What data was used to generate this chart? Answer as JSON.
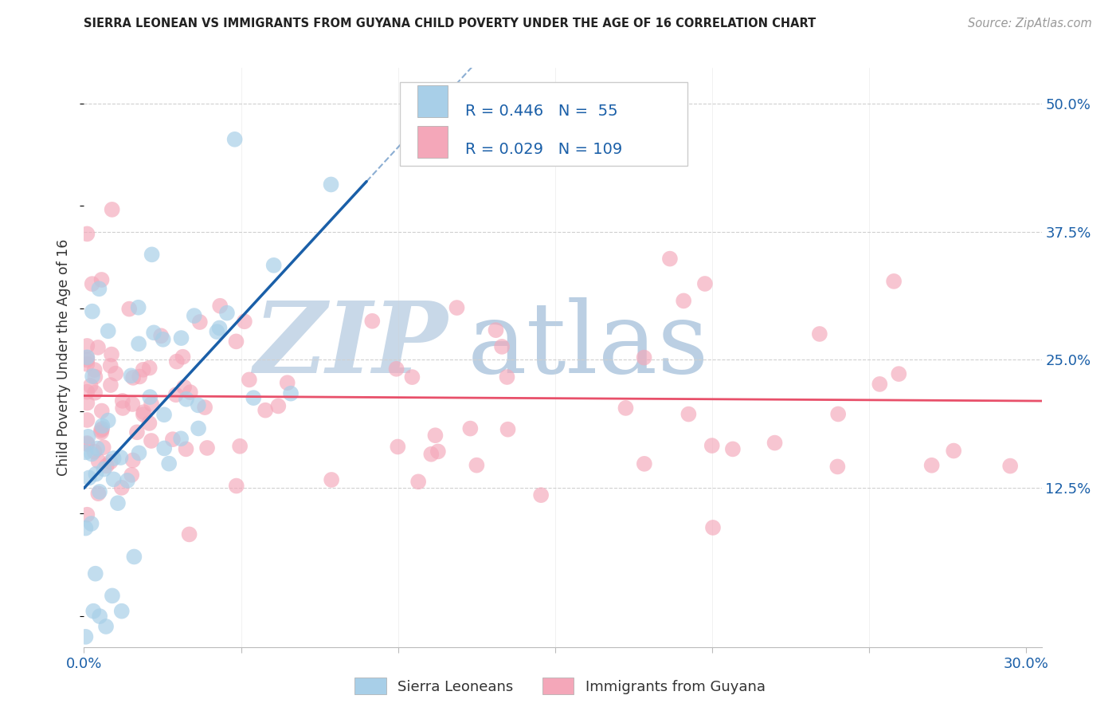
{
  "title": "SIERRA LEONEAN VS IMMIGRANTS FROM GUYANA CHILD POVERTY UNDER THE AGE OF 16 CORRELATION CHART",
  "source": "Source: ZipAtlas.com",
  "ylabel": "Child Poverty Under the Age of 16",
  "xlim": [
    0.0,
    0.305
  ],
  "ylim": [
    -0.03,
    0.535
  ],
  "yticks_right": [
    0.125,
    0.25,
    0.375,
    0.5
  ],
  "ytick_labels_right": [
    "12.5%",
    "25.0%",
    "37.5%",
    "50.0%"
  ],
  "xtick_positions": [
    0.0,
    0.05,
    0.1,
    0.15,
    0.2,
    0.25,
    0.3
  ],
  "xtick_labels": [
    "0.0%",
    "",
    "",
    "",
    "",
    "",
    "30.0%"
  ],
  "legend_R1": "0.446",
  "legend_N1": "55",
  "legend_R2": "0.029",
  "legend_N2": "109",
  "blue_color": "#a8cfe8",
  "pink_color": "#f4a7b9",
  "blue_line_color": "#1a5fa8",
  "pink_line_color": "#e8506a",
  "grid_color": "#d0d0d0",
  "watermark_zip_color": "#c8d8e8",
  "watermark_atlas_color": "#aac4dc",
  "title_color": "#222222",
  "source_color": "#999999",
  "axis_label_color": "#1a5fa8",
  "ylabel_color": "#333333",
  "blue_line_intercept": 0.135,
  "blue_line_slope": 2.8,
  "pink_line_intercept": 0.197,
  "pink_line_slope": 0.085
}
